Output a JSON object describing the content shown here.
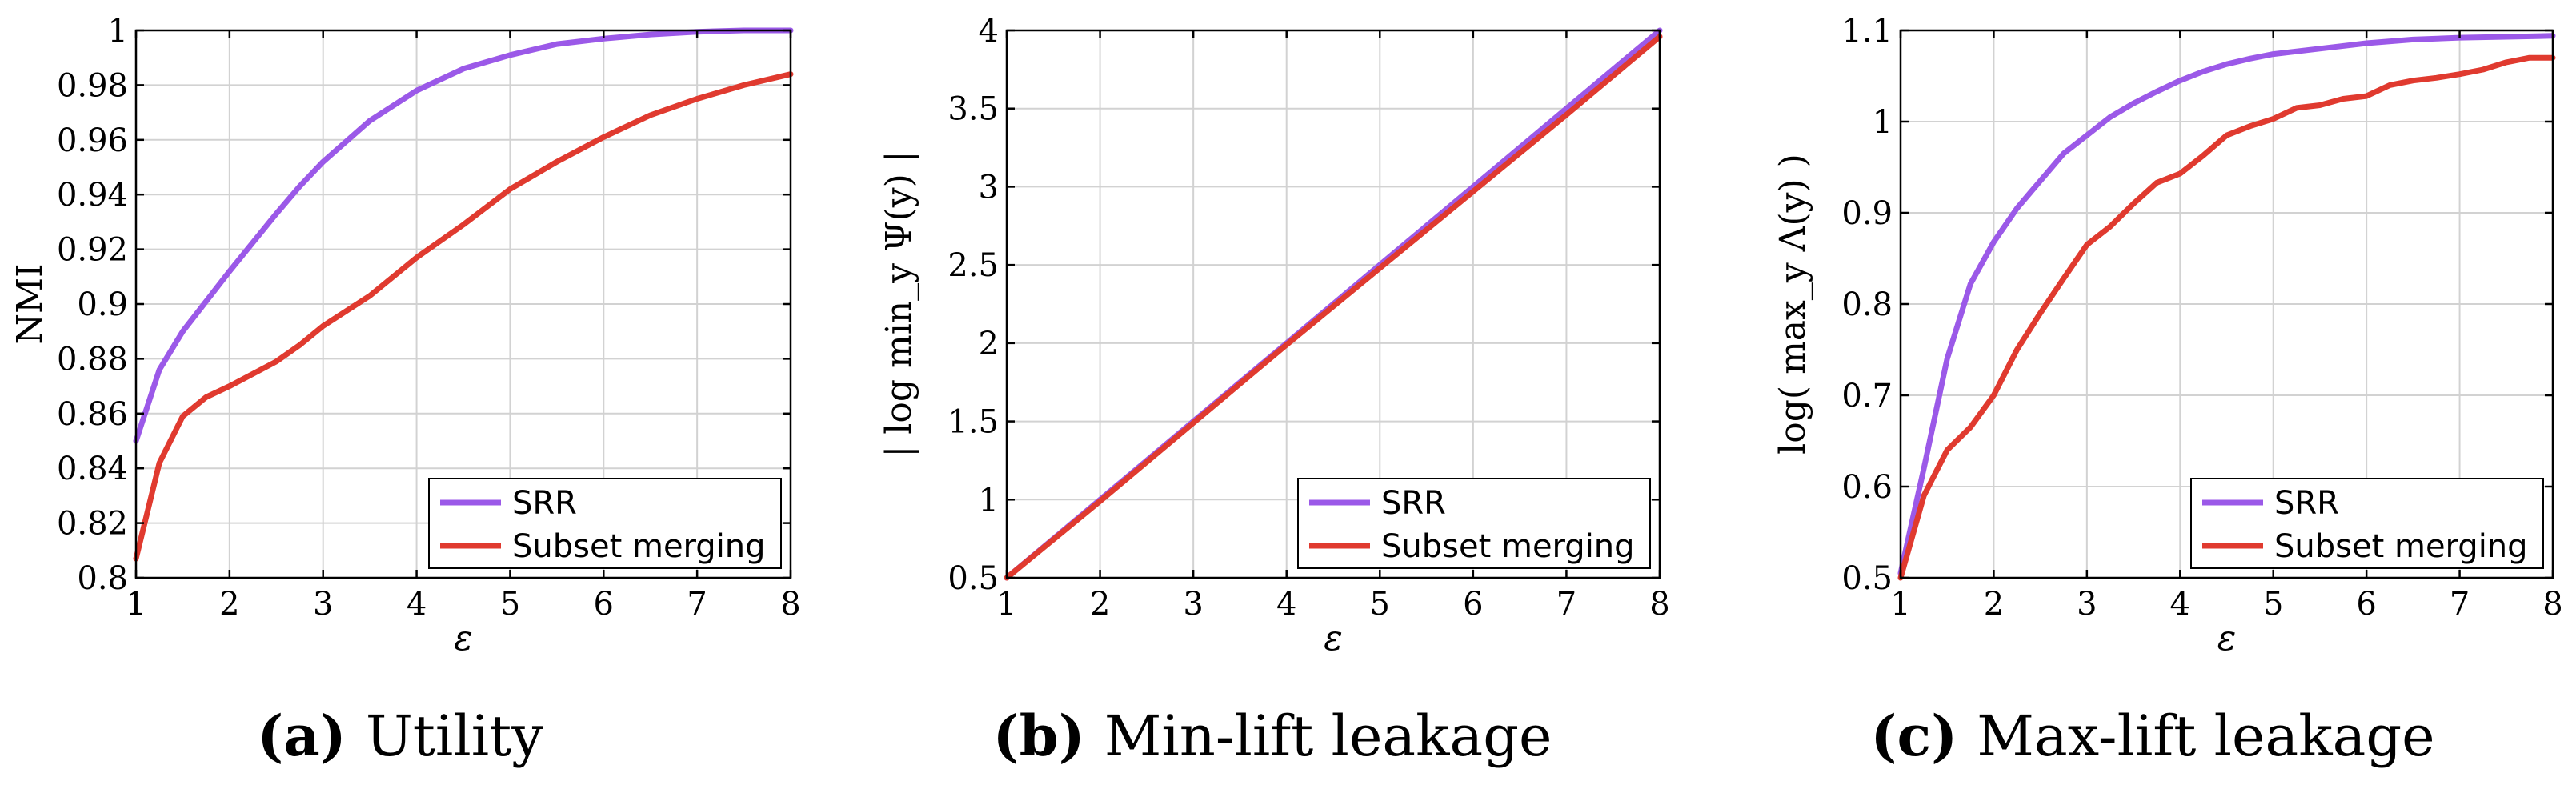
{
  "colors": {
    "srr": "#9b59e8",
    "subset": "#e03a2f"
  },
  "chart_data": [
    {
      "type": "line",
      "caption": {
        "letter": "(a)",
        "text": "Utility"
      },
      "xlabel": "ε",
      "ylabel": "NMI",
      "xlim": [
        1,
        8
      ],
      "ylim": [
        0.8,
        1
      ],
      "xticks": [
        "1",
        "2",
        "3",
        "4",
        "5",
        "6",
        "7",
        "8"
      ],
      "yticks": [
        "0.8",
        "0.82",
        "0.84",
        "0.86",
        "0.88",
        "0.9",
        "0.92",
        "0.94",
        "0.96",
        "0.98",
        "1"
      ],
      "grid": true,
      "legend_position": "bottom-right",
      "series": [
        {
          "name": "SRR",
          "color": "#9b59e8",
          "x": [
            1,
            1.25,
            1.5,
            2,
            2.5,
            2.75,
            3,
            3.5,
            4,
            4.5,
            5,
            5.5,
            6,
            6.5,
            7,
            7.5,
            8
          ],
          "y": [
            0.85,
            0.876,
            0.89,
            0.912,
            0.933,
            0.943,
            0.952,
            0.967,
            0.978,
            0.986,
            0.991,
            0.995,
            0.997,
            0.9985,
            0.9995,
            1.0,
            1.0
          ]
        },
        {
          "name": "Subset merging",
          "color": "#e03a2f",
          "x": [
            1,
            1.25,
            1.5,
            1.75,
            2,
            2.5,
            2.75,
            3,
            3.5,
            4,
            4.5,
            5,
            5.5,
            6,
            6.5,
            7,
            7.5,
            8
          ],
          "y": [
            0.807,
            0.842,
            0.859,
            0.866,
            0.87,
            0.879,
            0.885,
            0.892,
            0.903,
            0.917,
            0.929,
            0.942,
            0.952,
            0.961,
            0.969,
            0.975,
            0.98,
            0.984
          ]
        }
      ]
    },
    {
      "type": "line",
      "caption": {
        "letter": "(b)",
        "text": "Min-lift leakage"
      },
      "xlabel": "ε",
      "ylabel": "| log min_y Ψ(y) |",
      "xlim": [
        1,
        8
      ],
      "ylim": [
        0.5,
        4
      ],
      "xticks": [
        "1",
        "2",
        "3",
        "4",
        "5",
        "6",
        "7",
        "8"
      ],
      "yticks": [
        "0.5",
        "1",
        "1.5",
        "2",
        "2.5",
        "3",
        "3.5",
        "4"
      ],
      "grid": true,
      "legend_position": "bottom-right",
      "series": [
        {
          "name": "SRR",
          "color": "#9b59e8",
          "x": [
            1,
            2,
            3,
            4,
            5,
            6,
            7,
            8
          ],
          "y": [
            0.5,
            1.0,
            1.5,
            2.0,
            2.5,
            3.0,
            3.5,
            4.0
          ]
        },
        {
          "name": "Subset merging",
          "color": "#e03a2f",
          "x": [
            1,
            2,
            3,
            4,
            5,
            6,
            7,
            8
          ],
          "y": [
            0.5,
            0.99,
            1.49,
            1.99,
            2.48,
            2.97,
            3.46,
            3.96
          ]
        }
      ]
    },
    {
      "type": "line",
      "caption": {
        "letter": "(c)",
        "text": "Max-lift leakage"
      },
      "xlabel": "ε",
      "ylabel": "log( max_y Λ(y) )",
      "xlim": [
        1,
        8
      ],
      "ylim": [
        0.5,
        1.1
      ],
      "xticks": [
        "1",
        "2",
        "3",
        "4",
        "5",
        "6",
        "7",
        "8"
      ],
      "yticks": [
        "0.5",
        "0.6",
        "0.7",
        "0.8",
        "0.9",
        "1",
        "1.1"
      ],
      "grid": true,
      "legend_position": "bottom-right",
      "series": [
        {
          "name": "SRR",
          "color": "#9b59e8",
          "x": [
            1,
            1.25,
            1.5,
            1.75,
            2,
            2.25,
            2.5,
            2.75,
            3,
            3.25,
            3.5,
            3.75,
            4,
            4.25,
            4.5,
            4.75,
            5,
            5.5,
            6,
            6.5,
            7,
            7.5,
            8
          ],
          "y": [
            0.505,
            0.62,
            0.74,
            0.822,
            0.868,
            0.905,
            0.935,
            0.965,
            0.985,
            1.005,
            1.02,
            1.033,
            1.045,
            1.055,
            1.063,
            1.069,
            1.074,
            1.08,
            1.086,
            1.09,
            1.092,
            1.093,
            1.094
          ]
        },
        {
          "name": "Subset merging",
          "color": "#e03a2f",
          "x": [
            1,
            1.25,
            1.5,
            1.75,
            2,
            2.25,
            2.5,
            2.75,
            3,
            3.25,
            3.5,
            3.75,
            4,
            4.25,
            4.5,
            4.75,
            5,
            5.25,
            5.5,
            5.75,
            6,
            6.25,
            6.5,
            6.75,
            7,
            7.25,
            7.5,
            7.75,
            8
          ],
          "y": [
            0.5,
            0.59,
            0.64,
            0.665,
            0.7,
            0.75,
            0.79,
            0.828,
            0.865,
            0.885,
            0.91,
            0.933,
            0.943,
            0.963,
            0.985,
            0.995,
            1.003,
            1.015,
            1.018,
            1.025,
            1.028,
            1.04,
            1.045,
            1.048,
            1.052,
            1.057,
            1.065,
            1.07,
            1.07
          ]
        }
      ]
    }
  ]
}
